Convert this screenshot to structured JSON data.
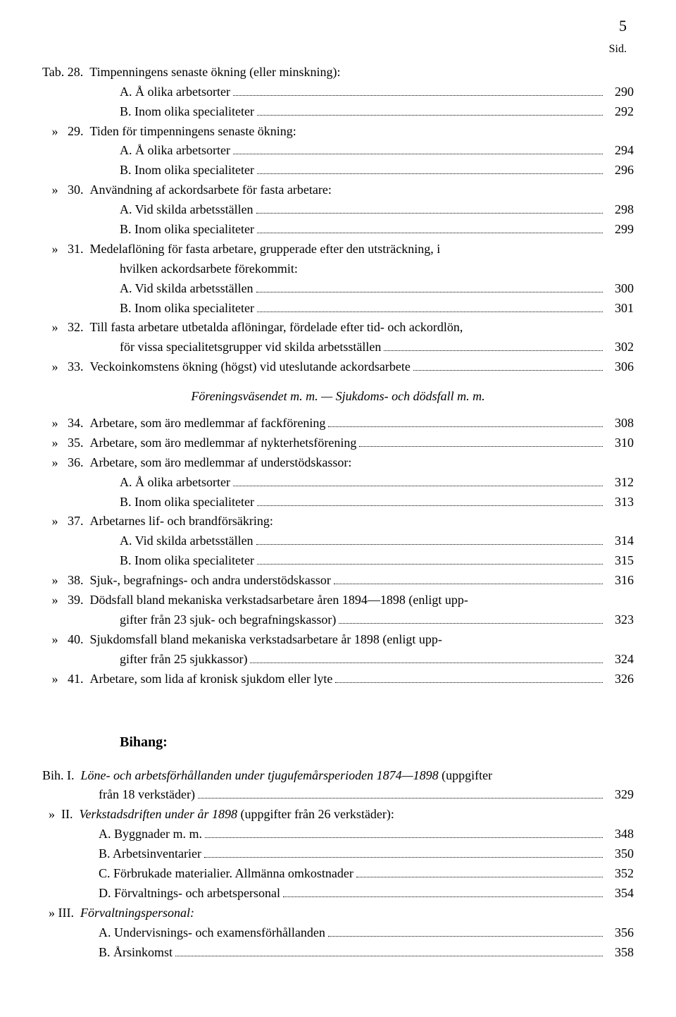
{
  "page_number": "5",
  "sid_label": "Sid.",
  "entries": [
    {
      "label": "Tab. 28.",
      "text": "Timpenningens senaste ökning (eller minskning):",
      "page": ""
    },
    {
      "label": "",
      "indent": "hang",
      "text": "A.  Å olika arbetsorter",
      "page": "290"
    },
    {
      "label": "",
      "indent": "hang",
      "text": "B.  Inom olika specialiteter",
      "page": "292"
    },
    {
      "label": "   »   29.",
      "text": "Tiden för timpenningens senaste ökning:",
      "page": ""
    },
    {
      "label": "",
      "indent": "hang",
      "text": "A.  Å olika arbetsorter",
      "page": "294"
    },
    {
      "label": "",
      "indent": "hang",
      "text": "B.  Inom olika specialiteter",
      "page": "296"
    },
    {
      "label": "   »   30.",
      "text": "Användning af ackordsarbete för fasta arbetare:",
      "page": ""
    },
    {
      "label": "",
      "indent": "hang",
      "text": "A.  Vid skilda arbetsställen",
      "page": "298"
    },
    {
      "label": "",
      "indent": "hang",
      "text": "B.  Inom olika specialiteter",
      "page": "299"
    },
    {
      "label": "   »   31.",
      "text": "Medelaflöning för fasta arbetare, grupperade efter den utsträckning, i",
      "page": "",
      "nodots": true
    },
    {
      "label": "",
      "indent": "hang",
      "text": "hvilken ackordsarbete förekommit:",
      "page": ""
    },
    {
      "label": "",
      "indent": "hang",
      "text": "A.  Vid skilda arbetsställen",
      "page": "300"
    },
    {
      "label": "",
      "indent": "hang",
      "text": "B.  Inom olika specialiteter",
      "page": "301"
    },
    {
      "label": "   »   32.",
      "text": "Till fasta arbetare utbetalda aflöningar, fördelade efter tid- och ackordlön,",
      "page": "",
      "nodots": true
    },
    {
      "label": "",
      "indent": "hang",
      "text": "för vissa specialitetsgrupper vid skilda arbetsställen",
      "page": "302"
    },
    {
      "label": "   »   33.",
      "text": "Veckoinkomstens ökning (högst) vid uteslutande ackordsarbete",
      "page": "306"
    }
  ],
  "subheading": "Föreningsväsendet m. m. — Sjukdoms- och dödsfall m. m.",
  "entries2": [
    {
      "label": "   »   34.",
      "text": "Arbetare, som äro medlemmar af fackförening",
      "page": "308"
    },
    {
      "label": "   »   35.",
      "text": "Arbetare, som äro medlemmar af nykterhetsförening",
      "page": "310"
    },
    {
      "label": "   »   36.",
      "text": "Arbetare, som äro medlemmar af understödskassor:",
      "page": ""
    },
    {
      "label": "",
      "indent": "hang",
      "text": "A.  Å olika arbetsorter",
      "page": "312"
    },
    {
      "label": "",
      "indent": "hang",
      "text": "B.  Inom olika specialiteter",
      "page": "313"
    },
    {
      "label": "   »   37.",
      "text": "Arbetarnes lif- och brandförsäkring:",
      "page": ""
    },
    {
      "label": "",
      "indent": "hang",
      "text": "A.  Vid skilda arbetsställen",
      "page": "314"
    },
    {
      "label": "",
      "indent": "hang",
      "text": "B.  Inom olika specialiteter",
      "page": "315"
    },
    {
      "label": "   »   38.",
      "text": "Sjuk-, begrafnings- och andra understödskassor",
      "page": "316"
    },
    {
      "label": "   »   39.",
      "text": "Dödsfall bland mekaniska verkstadsarbetare åren 1894—1898 (enligt upp-",
      "page": "",
      "nodots": true
    },
    {
      "label": "",
      "indent": "hang",
      "text": "gifter från 23 sjuk- och begrafningskassor)",
      "page": "323"
    },
    {
      "label": "   »   40.",
      "text": "Sjukdomsfall bland mekaniska verkstadsarbetare år 1898 (enligt upp-",
      "page": "",
      "nodots": true
    },
    {
      "label": "",
      "indent": "hang",
      "text": "gifter från 25 sjukkassor)",
      "page": "324"
    },
    {
      "label": "   »   41.",
      "text": "Arbetare, som lida af kronisk sjukdom eller lyte",
      "page": "326"
    }
  ],
  "bihang_title": "Bihang:",
  "bihang": [
    {
      "label": "Bih. I.",
      "italic": true,
      "text": "Löne- och arbetsförhållanden under tjugufemårsperioden 1874—1898",
      "tail": " (uppgifter",
      "page": "",
      "nodots": true
    },
    {
      "label": "",
      "indent": "bih-hang",
      "text": "från 18 verkstäder)",
      "page": "329"
    },
    {
      "label": "  »  II.",
      "italic": true,
      "text": "Verkstadsdriften under år 1898",
      "tail": " (uppgifter från 26 verkstäder):",
      "page": ""
    },
    {
      "label": "",
      "indent": "bih-hang",
      "text": "A.  Byggnader m. m.",
      "page": "348"
    },
    {
      "label": "",
      "indent": "bih-hang",
      "text": "B.  Arbetsinventarier",
      "page": "350"
    },
    {
      "label": "",
      "indent": "bih-hang",
      "text": "C.  Förbrukade materialier.  Allmänna omkostnader",
      "page": "352"
    },
    {
      "label": "",
      "indent": "bih-hang",
      "text": "D.  Förvaltnings- och arbetspersonal",
      "page": "354"
    },
    {
      "label": "  » III.",
      "italic": true,
      "text": "Förvaltningspersonal:",
      "page": ""
    },
    {
      "label": "",
      "indent": "bih-hang",
      "text": "A.  Undervisnings- och examensförhållanden",
      "page": "356"
    },
    {
      "label": "",
      "indent": "bih-hang",
      "text": "B.  Årsinkomst",
      "page": "358"
    }
  ]
}
